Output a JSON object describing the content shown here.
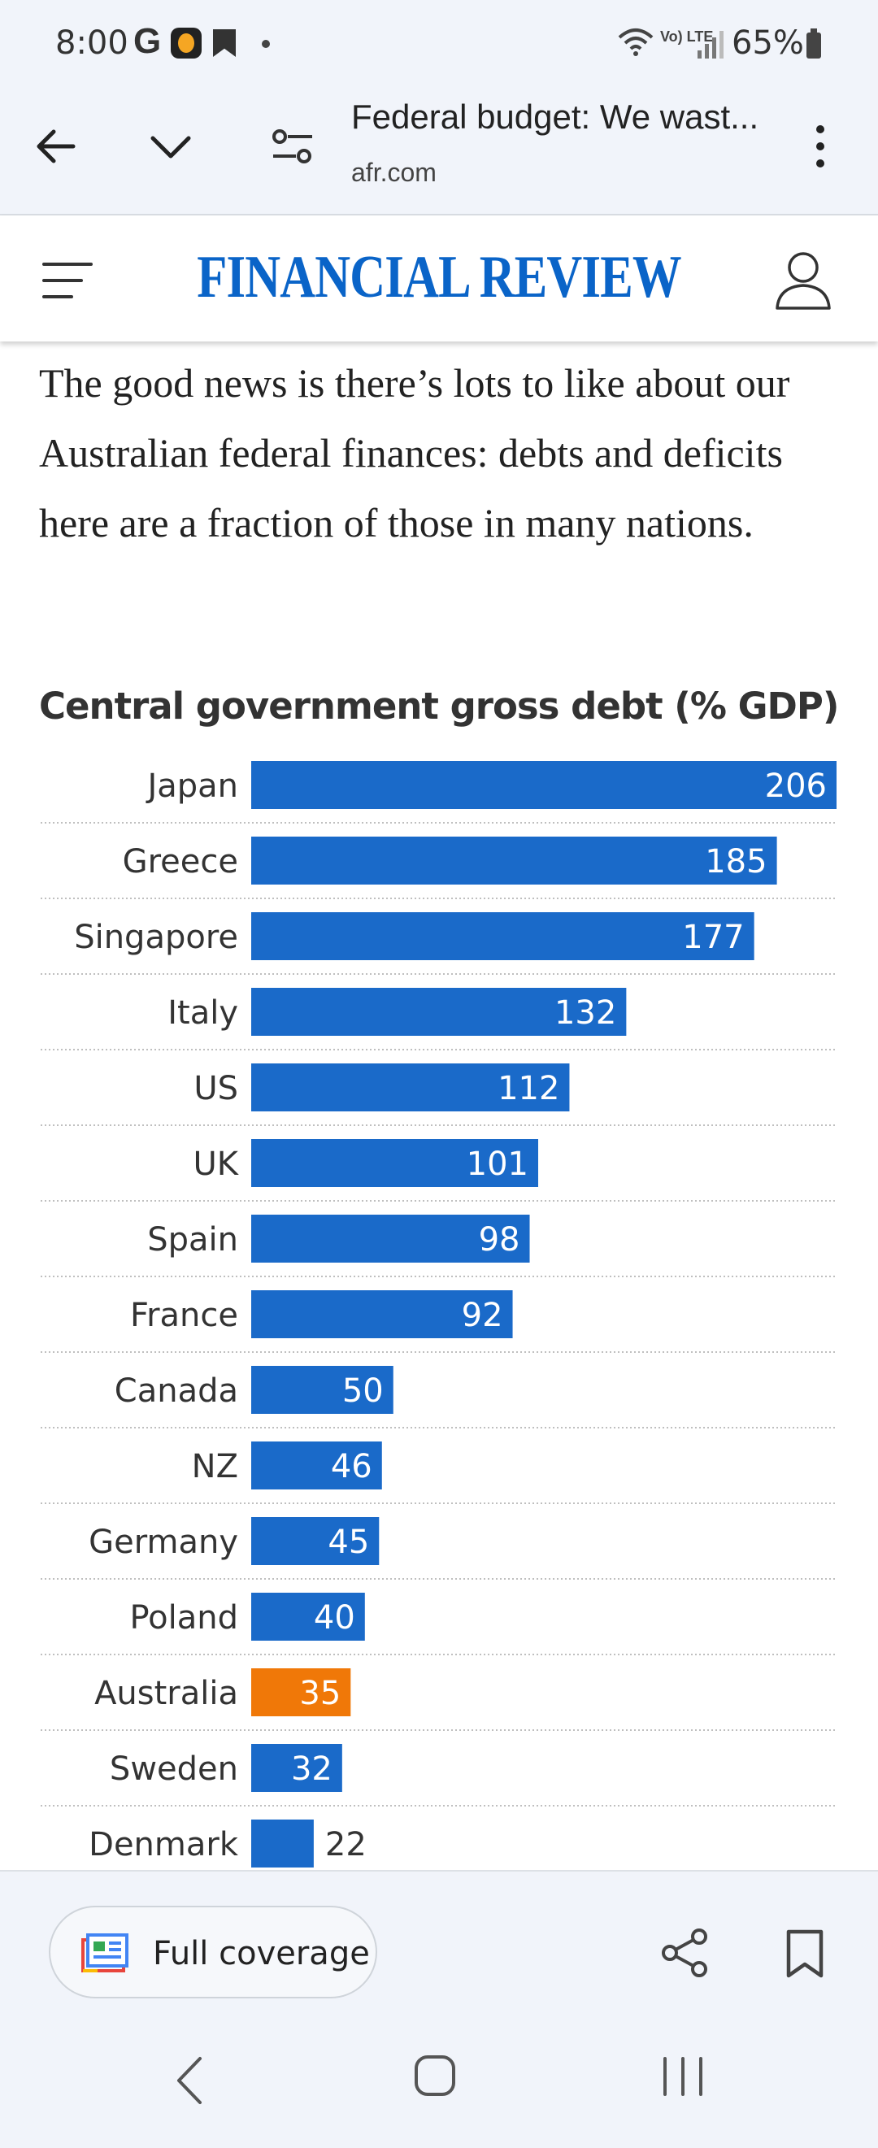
{
  "status_bar": {
    "time": "8:00",
    "battery": "65%",
    "network_label": "Vo) LTE"
  },
  "browser": {
    "page_title": "Federal budget: We wast...",
    "domain": "afr.com"
  },
  "site": {
    "logo": "FINANCIAL REVIEW"
  },
  "article": {
    "paragraph": "The good news is there’s lots to like about our Australian federal finances: debts and deficits here are a fraction of those in many nations."
  },
  "chart_data": {
    "type": "bar",
    "orientation": "horizontal",
    "title": "Central government gross debt (% GDP)",
    "categories": [
      "Japan",
      "Greece",
      "Singapore",
      "Italy",
      "US",
      "UK",
      "Spain",
      "France",
      "Canada",
      "NZ",
      "Germany",
      "Poland",
      "Australia",
      "Sweden",
      "Denmark"
    ],
    "values": [
      206,
      185,
      177,
      132,
      112,
      101,
      98,
      92,
      50,
      46,
      45,
      40,
      35,
      32,
      22
    ],
    "highlight": "Australia",
    "colors": {
      "bar": "#1a6ac9",
      "highlight": "#f07808"
    },
    "xlim": [
      0,
      206
    ],
    "grid": false
  },
  "bottom_bar": {
    "full_coverage_label": "Full coverage"
  }
}
